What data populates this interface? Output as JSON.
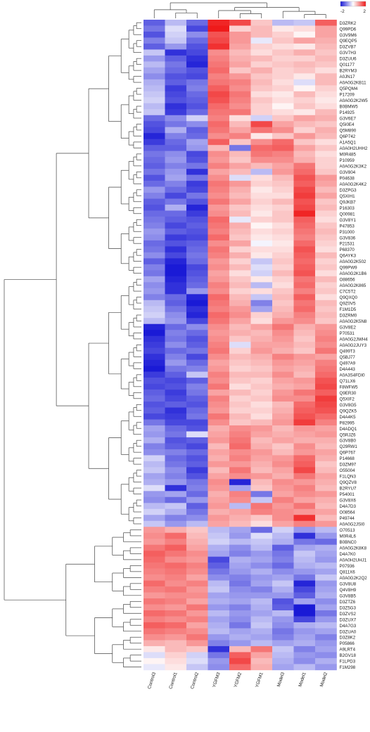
{
  "chart_data": {
    "type": "heatmap",
    "title": "",
    "xlabel": "",
    "ylabel": "",
    "columns": [
      "Control3",
      "Control1",
      "Control2",
      "YGFM3",
      "YGFM2",
      "YGFM1",
      "Model3",
      "Model1",
      "Model2"
    ],
    "rows": [
      "D3ZRK2",
      "Q99PD6",
      "G3V9M6",
      "Q9EQP5",
      "D3ZVB7",
      "G3V7H3",
      "D3ZUU6",
      "Q01177",
      "B2RYM3",
      "A0JN17",
      "A0A0G2KB11",
      "Q5PQM4",
      "P17209",
      "A0A0G2K2W5",
      "B0BMW5",
      "P14925",
      "G3V6E7",
      "Q5I0E4",
      "Q5M890",
      "Q6P742",
      "A1A5Q1",
      "A0A0H2UHH2",
      "M0R485",
      "P10959",
      "A0A0G2K3K2",
      "G3V804",
      "P04638",
      "A0A0G2K4K2",
      "D3ZPG3",
      "Q5XIH1",
      "Q9JKB7",
      "P16303",
      "Q00981",
      "G3V8Y1",
      "P47853",
      "P31000",
      "G3V836",
      "P21531",
      "P68370",
      "Q6AYK3",
      "A0A0G2K502",
      "Q99PW9",
      "A0A0G2K1B6",
      "O88656",
      "A0A0G2K865",
      "C7C5T2",
      "Q9QXQ0",
      "Q9Z0V5",
      "F1M1D5",
      "D3ZRM0",
      "A0A0G2K5N8",
      "G3V8E2",
      "P70531",
      "A0A0G2JWH4",
      "A0A0G2JUY3",
      "Q499T3",
      "Q5BJ77",
      "Q497A9",
      "D4A443",
      "A0A3S4FDI0",
      "Q71LX6",
      "F8WFW5",
      "Q9ER30",
      "Q5XIF2",
      "G3V8G5",
      "Q9QZK5",
      "D4A4K5",
      "P82995",
      "D4ADQ1",
      "Q5RJZ6",
      "G3V8B0",
      "Q29RW1",
      "Q6P767",
      "P14668",
      "D3ZM97",
      "O55004",
      "F1LQN3",
      "Q9QZV8",
      "B2RYU7",
      "P54001",
      "G3V8X6",
      "D4A7D3",
      "O08564",
      "P49744",
      "A0A0G2JSI0",
      "O70513",
      "M0R4L6",
      "B0BNC0",
      "A0A0G2K8K8",
      "D4A7K0",
      "A0A0H2UHJ1",
      "P07936",
      "Q811X6",
      "A0A0G2K2Q2",
      "G3V8U8",
      "Q4V8H9",
      "G3V8B5",
      "D3ZTZ6",
      "D3Z5G3",
      "D3ZVS2",
      "D3ZUX7",
      "D4A7G3",
      "D3ZUA0",
      "D3Z8K2",
      "P05866",
      "A9LRT4",
      "B2GV18",
      "F1LPD3",
      "F1M298"
    ],
    "values": [
      [
        -1.4,
        -0.6,
        -1.3,
        1.9,
        1.6,
        0.5,
        -0.6,
        -0.5,
        1.4
      ],
      [
        -1.2,
        -0.3,
        -1.6,
        2.0,
        0.4,
        0.6,
        0.2,
        0.3,
        0.8
      ],
      [
        -1.5,
        -0.4,
        -1.0,
        1.5,
        0.9,
        0.6,
        0.4,
        0.1,
        0.8
      ],
      [
        -1.1,
        -0.5,
        -1.3,
        1.6,
        0.9,
        -0.2,
        0.5,
        0.8,
        0.7
      ],
      [
        -1.4,
        -0.9,
        -1.5,
        1.8,
        0.8,
        0.4,
        0.3,
        0.2,
        0.6
      ],
      [
        -0.5,
        -1.8,
        -1.6,
        1.0,
        0.6,
        0.3,
        0.5,
        0.7,
        0.5
      ],
      [
        -0.9,
        -1.4,
        -1.8,
        1.1,
        0.7,
        0.6,
        0.4,
        0.4,
        0.6
      ],
      [
        -0.6,
        -1.2,
        -1.9,
        1.2,
        0.8,
        0.4,
        0.5,
        0.6,
        0.5
      ],
      [
        -0.8,
        -1.3,
        -1.5,
        1.3,
        0.5,
        0.7,
        0.4,
        0.5,
        0.3
      ],
      [
        -1.0,
        -1.5,
        -1.6,
        1.1,
        0.9,
        0.5,
        0.4,
        0.2,
        0.6
      ],
      [
        -0.7,
        -1.4,
        -1.2,
        1.2,
        1.1,
        0.6,
        0.3,
        -0.3,
        0.6
      ],
      [
        -0.6,
        -1.7,
        -1.1,
        1.4,
        1.0,
        0.5,
        0.4,
        0.1,
        0.4
      ],
      [
        -0.5,
        -1.6,
        -1.3,
        1.6,
        1.2,
        0.3,
        0.2,
        0.6,
        0.3
      ],
      [
        -0.4,
        -1.5,
        -1.4,
        1.5,
        1.1,
        0.5,
        0.3,
        0.4,
        0.2
      ],
      [
        -0.6,
        -1.8,
        -1.5,
        1.3,
        1.0,
        0.4,
        0.1,
        0.5,
        0.3
      ],
      [
        -0.5,
        -1.7,
        -1.3,
        1.2,
        1.2,
        0.4,
        0.3,
        0.2,
        0.6
      ],
      [
        -1.3,
        -1.0,
        -0.4,
        1.1,
        0.3,
        -0.4,
        0.5,
        0.8,
        0.7
      ],
      [
        -1.5,
        -1.2,
        -1.0,
        1.3,
        0.6,
        1.6,
        0.8,
        0.6,
        0.5
      ],
      [
        -1.6,
        -0.7,
        -1.4,
        1.2,
        0.8,
        1.2,
        1.0,
        0.4,
        0.7
      ],
      [
        -1.9,
        -1.1,
        -1.3,
        1.0,
        1.1,
        0.2,
        0.5,
        0.9,
        0.6
      ],
      [
        -1.7,
        -1.3,
        -0.8,
        1.4,
        0.5,
        1.0,
        1.3,
        0.5,
        0.3
      ],
      [
        -1.4,
        -1.4,
        -0.9,
        0.6,
        -1.2,
        1.3,
        1.4,
        0.8,
        0.5
      ],
      [
        -1.2,
        -1.0,
        -1.6,
        1.0,
        0.6,
        1.2,
        1.1,
        0.6,
        0.3
      ],
      [
        -1.3,
        -0.9,
        -1.5,
        0.9,
        0.5,
        1.0,
        1.0,
        0.7,
        0.4
      ],
      [
        -1.4,
        -1.1,
        -1.2,
        1.1,
        0.8,
        0.6,
        0.8,
        1.2,
        0.4
      ],
      [
        -1.2,
        -0.9,
        -1.8,
        0.8,
        0.6,
        -0.6,
        0.9,
        1.3,
        0.5
      ],
      [
        -1.5,
        -0.8,
        -1.2,
        1.0,
        -0.3,
        0.3,
        0.6,
        1.5,
        0.9
      ],
      [
        -1.3,
        -1.1,
        -1.7,
        1.2,
        0.9,
        0.4,
        0.5,
        1.4,
        0.8
      ],
      [
        -0.9,
        -1.3,
        -1.6,
        1.1,
        0.7,
        0.2,
        0.4,
        1.6,
        0.6
      ],
      [
        -1.1,
        -1.6,
        -1.2,
        1.0,
        0.6,
        0.3,
        0.3,
        1.7,
        0.8
      ],
      [
        -1.4,
        -1.2,
        -1.5,
        1.2,
        0.8,
        0.4,
        0.6,
        1.5,
        0.5
      ],
      [
        -1.5,
        -0.7,
        -1.9,
        0.9,
        0.5,
        0.3,
        0.4,
        1.6,
        0.6
      ],
      [
        -1.3,
        -1.3,
        -1.7,
        1.0,
        0.6,
        0.2,
        0.5,
        1.9,
        0.4
      ],
      [
        -1.2,
        -1.4,
        -1.5,
        1.3,
        -0.2,
        0.4,
        0.5,
        1.4,
        0.3
      ],
      [
        -1.1,
        -1.6,
        -1.4,
        1.2,
        0.7,
        0.1,
        0.3,
        1.3,
        0.5
      ],
      [
        -0.9,
        -1.4,
        -1.5,
        1.1,
        0.6,
        0.3,
        0.4,
        1.2,
        0.6
      ],
      [
        -1.0,
        -1.7,
        -1.6,
        1.3,
        0.5,
        0.2,
        0.3,
        1.1,
        0.5
      ],
      [
        -1.3,
        -1.5,
        -1.4,
        1.0,
        0.8,
        -0.1,
        0.2,
        1.3,
        0.4
      ],
      [
        -1.2,
        -1.8,
        -1.3,
        1.2,
        0.4,
        0.3,
        0.3,
        1.5,
        0.3
      ],
      [
        -1.0,
        -1.6,
        -1.2,
        1.1,
        0.7,
        0.2,
        0.4,
        1.4,
        0.6
      ],
      [
        -1.4,
        -1.9,
        -1.3,
        0.9,
        0.4,
        -0.5,
        0.5,
        1.3,
        0.4
      ],
      [
        -1.1,
        -2.0,
        -1.6,
        1.0,
        0.6,
        -0.3,
        0.4,
        1.4,
        0.5
      ],
      [
        -1.2,
        -2.0,
        -1.5,
        0.8,
        0.3,
        -0.4,
        0.6,
        1.5,
        0.3
      ],
      [
        -0.8,
        -1.9,
        -1.4,
        0.9,
        0.5,
        0.2,
        0.4,
        1.2,
        0.6
      ],
      [
        -1.0,
        -1.8,
        -1.3,
        1.1,
        0.6,
        -0.6,
        0.3,
        1.3,
        0.4
      ],
      [
        -0.9,
        -1.8,
        -0.9,
        1.0,
        0.4,
        0.3,
        0.5,
        1.1,
        0.5
      ],
      [
        -1.1,
        -1.3,
        -1.9,
        1.3,
        0.6,
        -0.5,
        0.6,
        1.4,
        0.3
      ],
      [
        -0.6,
        -1.4,
        -2.0,
        1.2,
        0.7,
        -1.1,
        0.5,
        1.2,
        0.6
      ],
      [
        -0.5,
        -1.2,
        -1.8,
        1.1,
        0.9,
        -0.8,
        0.6,
        1.3,
        0.5
      ],
      [
        -0.4,
        -1.0,
        -1.9,
        1.3,
        1.0,
        0.4,
        0.7,
        1.1,
        0.6
      ],
      [
        -0.6,
        -0.9,
        -1.6,
        1.2,
        0.8,
        0.3,
        0.9,
        1.0,
        0.5
      ],
      [
        -1.9,
        -1.3,
        -1.0,
        1.0,
        0.6,
        0.8,
        1.2,
        0.7,
        0.9
      ],
      [
        -2.0,
        -1.1,
        -1.3,
        0.9,
        0.7,
        0.6,
        1.0,
        0.6,
        1.0
      ],
      [
        -1.8,
        -1.2,
        -1.5,
        1.0,
        0.5,
        0.7,
        0.9,
        0.5,
        1.1
      ],
      [
        -1.7,
        -1.0,
        -1.4,
        1.1,
        -0.3,
        0.8,
        0.8,
        0.6,
        1.0
      ],
      [
        -1.6,
        -1.3,
        -1.2,
        1.2,
        0.4,
        0.9,
        0.7,
        0.5,
        1.2
      ],
      [
        -1.8,
        -1.1,
        -1.6,
        1.0,
        0.6,
        0.7,
        1.1,
        0.9,
        0.8
      ],
      [
        -1.9,
        -0.9,
        -1.3,
        0.8,
        0.5,
        0.6,
        0.9,
        0.8,
        1.1
      ],
      [
        -2.0,
        -1.2,
        -1.1,
        0.9,
        0.4,
        0.5,
        0.8,
        0.7,
        1.2
      ],
      [
        -1.7,
        -1.4,
        -0.5,
        1.1,
        0.6,
        0.6,
        1.0,
        0.6,
        1.3
      ],
      [
        -1.5,
        -1.6,
        -1.4,
        1.0,
        0.5,
        0.4,
        0.8,
        0.9,
        1.5
      ],
      [
        -1.6,
        -1.5,
        -1.1,
        1.2,
        0.3,
        0.5,
        0.7,
        0.8,
        1.6
      ],
      [
        -1.4,
        -1.7,
        -1.2,
        0.8,
        0.6,
        0.4,
        0.9,
        1.2,
        1.4
      ],
      [
        -1.3,
        -1.6,
        -1.4,
        1.1,
        0.4,
        0.5,
        1.0,
        1.0,
        1.7
      ],
      [
        -1.5,
        -1.4,
        -1.5,
        1.0,
        0.5,
        0.3,
        0.6,
        1.3,
        1.6
      ],
      [
        -1.4,
        -1.8,
        -1.3,
        0.9,
        0.4,
        0.4,
        0.7,
        1.4,
        1.5
      ],
      [
        -1.6,
        -1.7,
        -1.2,
        1.2,
        0.6,
        0.3,
        0.8,
        1.5,
        1.3
      ],
      [
        -1.2,
        -1.6,
        -1.6,
        1.0,
        0.5,
        0.6,
        0.9,
        1.7,
        1.1
      ],
      [
        -0.8,
        -1.3,
        -1.5,
        0.7,
        1.0,
        0.9,
        0.6,
        0.9,
        0.8
      ],
      [
        -0.9,
        -1.2,
        -0.3,
        0.8,
        1.1,
        0.8,
        0.7,
        0.8,
        0.9
      ],
      [
        -0.7,
        -1.5,
        -1.4,
        0.9,
        1.2,
        0.6,
        0.8,
        0.7,
        0.7
      ],
      [
        -1.1,
        -1.4,
        -1.6,
        0.6,
        1.3,
        0.7,
        0.5,
        1.0,
        0.6
      ],
      [
        -1.0,
        -1.1,
        -1.3,
        0.8,
        1.0,
        0.9,
        0.6,
        0.9,
        0.8
      ],
      [
        -0.4,
        -1.3,
        -1.5,
        0.7,
        1.1,
        0.8,
        0.9,
        1.3,
        0.7
      ],
      [
        -0.6,
        -1.2,
        -1.4,
        0.9,
        0.9,
        0.7,
        1.0,
        1.4,
        0.5
      ],
      [
        -0.5,
        -1.0,
        -1.7,
        0.6,
        1.2,
        0.6,
        0.8,
        1.6,
        0.6
      ],
      [
        -0.8,
        -1.1,
        -1.5,
        0.8,
        1.0,
        0.9,
        0.7,
        1.2,
        0.8
      ],
      [
        -0.7,
        -0.9,
        -1.2,
        1.0,
        -1.9,
        0.6,
        1.0,
        0.9,
        0.7
      ],
      [
        -0.3,
        -1.8,
        -1.1,
        0.9,
        -0.8,
        0.5,
        0.9,
        1.1,
        0.6
      ],
      [
        -0.9,
        -0.8,
        -1.3,
        0.7,
        1.1,
        -1.2,
        0.8,
        1.0,
        0.9
      ],
      [
        -1.0,
        -1.3,
        -0.9,
        0.8,
        1.0,
        -0.5,
        1.1,
        0.8,
        0.7
      ],
      [
        -0.6,
        -0.5,
        -1.4,
        0.9,
        -0.6,
        1.2,
        0.9,
        1.2,
        0.6
      ],
      [
        -0.4,
        -0.7,
        -1.2,
        0.7,
        0.8,
        1.1,
        1.0,
        0.9,
        0.8
      ],
      [
        -0.8,
        -1.1,
        -1.0,
        0.9,
        0.7,
        0.5,
        1.0,
        1.8,
        0.6
      ],
      [
        -0.5,
        -0.9,
        -0.6,
        0.8,
        0.6,
        0.3,
        0.8,
        1.1,
        0.9
      ],
      [
        0.9,
        0.7,
        0.5,
        -0.6,
        -0.8,
        -1.3,
        -0.4,
        -0.9,
        -0.6
      ],
      [
        1.0,
        1.3,
        0.6,
        -0.5,
        -0.9,
        -0.3,
        -0.6,
        -1.8,
        -0.9
      ],
      [
        0.9,
        1.1,
        0.7,
        -0.4,
        -0.6,
        -0.5,
        -0.7,
        -1.2,
        -1.3
      ],
      [
        1.2,
        1.4,
        0.8,
        -0.7,
        -1.0,
        -0.6,
        -1.4,
        -0.8,
        -0.7
      ],
      [
        1.4,
        1.2,
        1.0,
        -0.8,
        -1.1,
        -0.9,
        -1.2,
        -0.5,
        -0.8
      ],
      [
        1.3,
        1.0,
        0.9,
        -1.6,
        -0.7,
        -0.8,
        -1.1,
        -0.6,
        -0.9
      ],
      [
        1.2,
        1.3,
        1.1,
        -1.4,
        -0.8,
        -1.0,
        -1.3,
        -0.7,
        -0.6
      ],
      [
        1.1,
        1.2,
        1.0,
        -1.2,
        -0.9,
        -0.7,
        -1.0,
        -0.9,
        -0.8
      ],
      [
        1.0,
        1.1,
        0.8,
        -1.0,
        -1.1,
        -0.9,
        -0.8,
        -1.2,
        -0.5
      ],
      [
        1.3,
        1.0,
        1.1,
        -0.6,
        -1.2,
        -0.8,
        -0.5,
        -1.9,
        -0.9
      ],
      [
        1.1,
        1.2,
        0.9,
        -0.5,
        -1.0,
        -1.1,
        -0.7,
        -1.6,
        -0.8
      ],
      [
        0.9,
        1.0,
        1.0,
        -0.8,
        -0.9,
        -0.9,
        -0.9,
        -1.4,
        -0.7
      ],
      [
        1.2,
        1.1,
        0.8,
        -0.7,
        -0.8,
        -0.6,
        -1.5,
        -0.8,
        -1.0
      ],
      [
        1.0,
        0.9,
        1.2,
        -0.9,
        -1.1,
        -0.7,
        -1.4,
        -2.0,
        -0.8
      ],
      [
        1.3,
        1.2,
        0.9,
        -0.6,
        -0.9,
        -0.8,
        -0.6,
        -2.0,
        -1.2
      ],
      [
        1.1,
        1.0,
        1.1,
        -0.8,
        -1.0,
        -0.6,
        -0.9,
        -1.6,
        -0.9
      ],
      [
        1.4,
        1.3,
        0.8,
        -0.7,
        -1.2,
        -0.5,
        -1.0,
        -0.7,
        -0.6
      ],
      [
        1.2,
        1.1,
        1.0,
        -0.6,
        -0.8,
        -0.7,
        -1.2,
        -0.9,
        -0.8
      ],
      [
        1.0,
        0.9,
        1.2,
        -0.9,
        -0.7,
        -0.8,
        -1.1,
        -0.8,
        -1.1
      ],
      [
        0.7,
        0.6,
        0.9,
        -1.1,
        -0.9,
        -0.6,
        -0.8,
        -0.7,
        -0.9
      ],
      [
        0.2,
        0.6,
        0.5,
        -1.8,
        0.6,
        1.2,
        -0.5,
        -1.1,
        -0.8
      ],
      [
        -0.3,
        0.4,
        -0.4,
        -1.2,
        1.4,
        0.8,
        -0.6,
        -0.9,
        -1.0
      ],
      [
        0.1,
        0.3,
        -0.3,
        -0.9,
        1.6,
        0.6,
        -0.7,
        -1.0,
        -0.7
      ],
      [
        -0.2,
        0.2,
        -0.5,
        -1.0,
        1.3,
        0.7,
        -0.8,
        -0.6,
        -0.9
      ]
    ],
    "scale": {
      "min": -2,
      "max": 2,
      "low_color": "#1a1ad6",
      "mid_color": "#ffffff",
      "high_color": "#ef1a1a",
      "tick_labels": [
        "-2",
        "2"
      ]
    },
    "legend": "top-right",
    "row_dendrogram": "left",
    "column_dendrogram": "top"
  }
}
